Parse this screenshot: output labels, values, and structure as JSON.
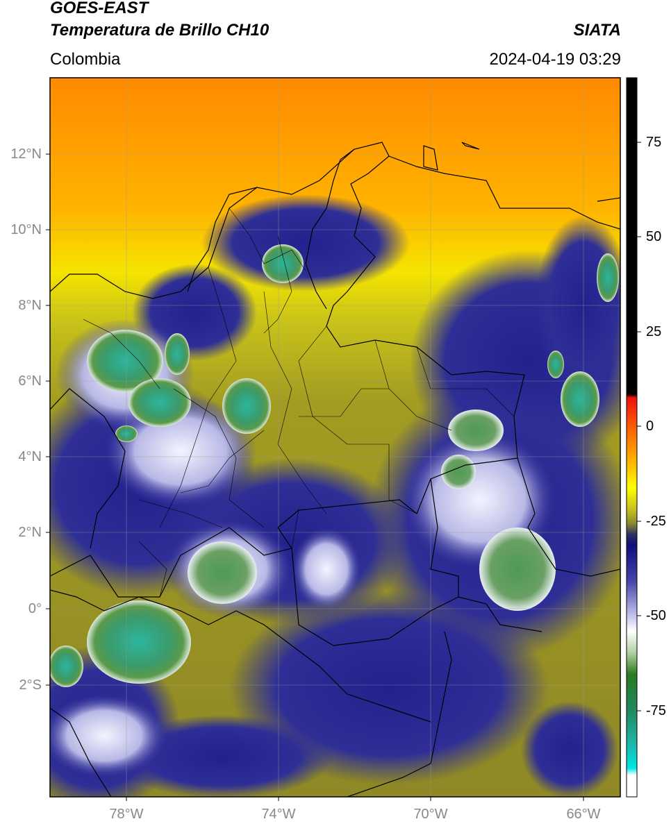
{
  "header": {
    "line1": "GOES-EAST",
    "line2": "Temperatura de Brillo CH10",
    "region": "Colombia",
    "source": "SIATA",
    "datetime": "2024-04-19 03:29"
  },
  "colorbar": {
    "ticks": [
      "75",
      "50",
      "25",
      "0",
      "-25",
      "-50",
      "-75"
    ]
  },
  "axes": {
    "lat_labels": [
      "12°N",
      "10°N",
      "8°N",
      "6°N",
      "4°N",
      "2°N",
      "0°",
      "2°S"
    ],
    "lon_labels": [
      "78°W",
      "74°W",
      "70°W",
      "66°W"
    ]
  },
  "colors": {
    "warm": "#ff8c00",
    "yellow": "#f2e600",
    "olive": "#a8a21e",
    "navy": "#1a1a8a",
    "white": "#f2f2ff",
    "green": "#3a8a3a",
    "teal": "#29b09a"
  }
}
